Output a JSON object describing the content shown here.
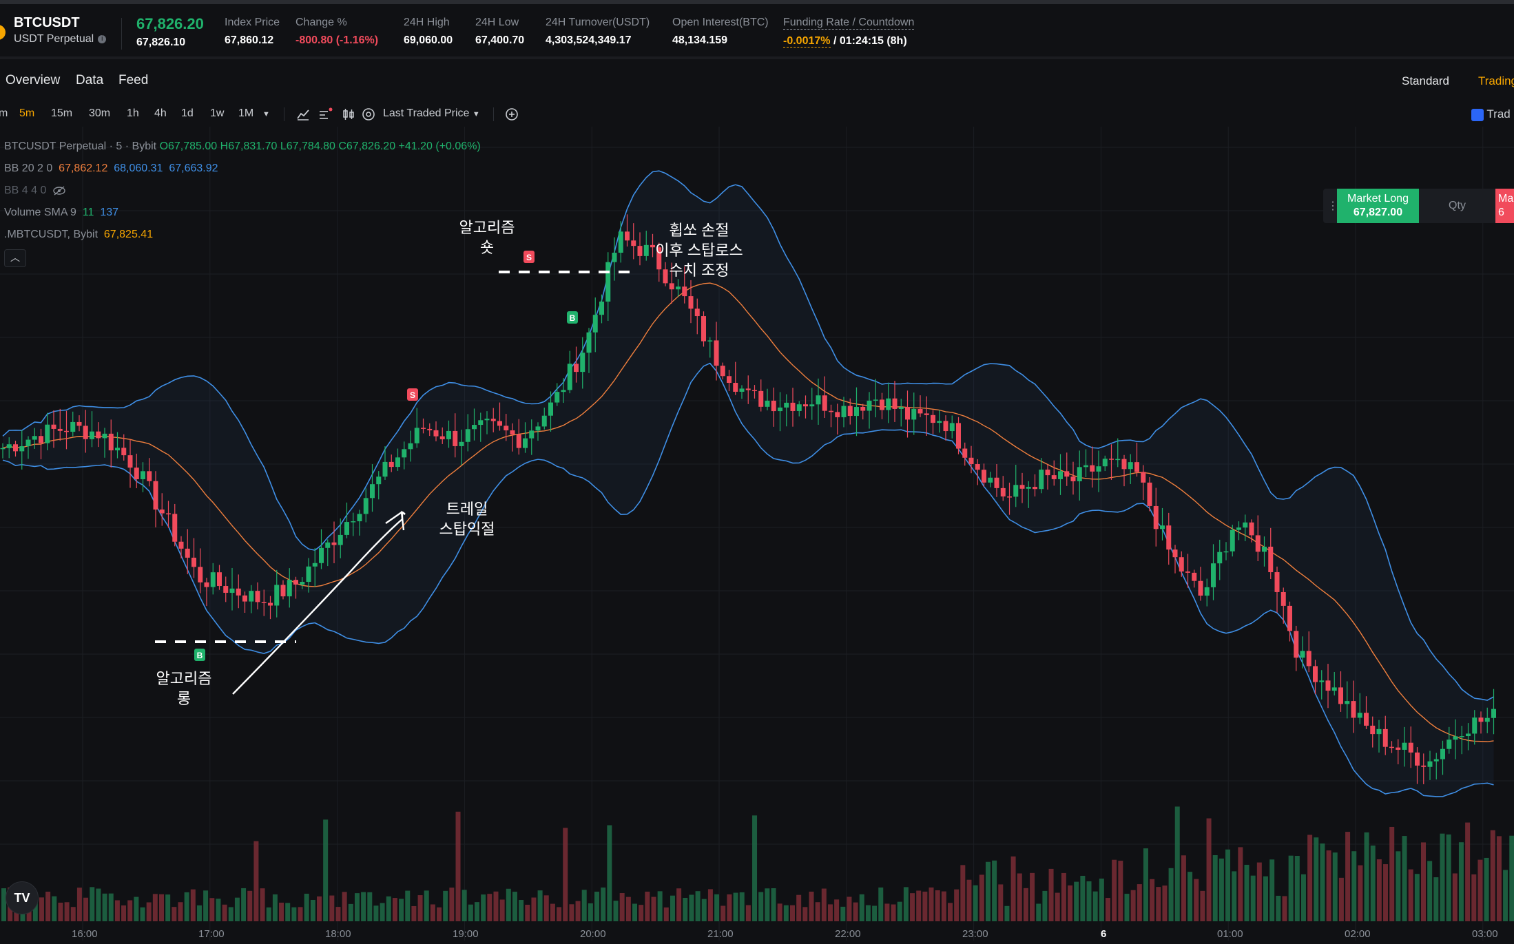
{
  "ticker": {
    "symbol": "BTCUSDT",
    "subtitle": "USDT Perpetual",
    "last_price": "67,826.20",
    "mark_price": "67,826.10",
    "stats": [
      {
        "label": "Index Price",
        "value": "67,860.12"
      },
      {
        "label": "Change %",
        "value": "-800.80 (-1.16%)"
      },
      {
        "label": "24H High",
        "value": "69,060.00"
      },
      {
        "label": "24H Low",
        "value": "67,400.70"
      },
      {
        "label": "24H Turnover(USDT)",
        "value": "4,303,524,349.17"
      },
      {
        "label": "Open Interest(BTC)",
        "value": "48,134.159"
      }
    ],
    "funding": {
      "label": "Funding Rate / Countdown",
      "rate": "-0.0017%",
      "countdown": " / 01:24:15 (8h)"
    }
  },
  "tabs": {
    "overview": "Overview",
    "data": "Data",
    "feed": "Feed",
    "standard": "Standard",
    "tradingview": "TradingView"
  },
  "toolbar": {
    "timeframes": [
      "m",
      "5m",
      "15m",
      "30m",
      "1h",
      "4h",
      "1d",
      "1w",
      "1M"
    ],
    "active_timeframe": "5m",
    "price_source": "Last Traded Price",
    "trade_label": "Trad"
  },
  "legend": {
    "main": {
      "title": "BTCUSDT Perpetual · 5 · Bybit",
      "o": "O67,785.00",
      "h": "H67,831.70",
      "l": "L67,784.80",
      "c": "C67,826.20",
      "chg": "+41.20 (+0.06%)"
    },
    "bb1": {
      "name": "BB 20 2 0",
      "basis": "67,862.12",
      "upper": "68,060.31",
      "lower": "67,663.92"
    },
    "bb2": {
      "name": "BB 4 4 0"
    },
    "vol": {
      "name": "Volume SMA 9",
      "v1": "11",
      "v2": "137"
    },
    "index": {
      "name": ".MBTCUSDT, Bybit",
      "value": "67,825.41"
    }
  },
  "order": {
    "long_label": "Market Long",
    "long_price": "67,827.00",
    "qty": "Qty",
    "short_label": "Ma",
    "short_price": "6"
  },
  "annotations": {
    "algo_short": [
      "알고리즘",
      "숏"
    ],
    "whipsaw": [
      "휩쏘 손절",
      "이후 스탑로스",
      "수치 조정"
    ],
    "trailing": [
      "트레일",
      "스탑익절"
    ],
    "algo_long": [
      "알고리즘",
      "롱"
    ],
    "sig_s": "S",
    "sig_b": "B"
  },
  "x_axis": [
    "16:00",
    "17:00",
    "18:00",
    "19:00",
    "20:00",
    "21:00",
    "22:00",
    "23:00",
    "6",
    "01:00",
    "02:00",
    "03:00"
  ],
  "colors": {
    "up": "#20b26c",
    "down": "#f14b5c",
    "accent": "#f7a600",
    "bb_band": "#3f8fe6",
    "bb_basis": "#f07f3d"
  },
  "chart_data": {
    "type": "candlestick",
    "interval": "5m",
    "x_range": [
      "15:35",
      "03:10"
    ],
    "ylim": [
      66500,
      68800
    ],
    "close_path_approx": [
      67750,
      67790,
      67820,
      67800,
      67700,
      67520,
      67320,
      67280,
      67240,
      67290,
      67420,
      67560,
      67700,
      67820,
      67780,
      67820,
      67780,
      67900,
      68100,
      68450,
      68400,
      68250,
      68050,
      67920,
      67900,
      67910,
      67880,
      67920,
      67850,
      67850,
      67700,
      67580,
      67650,
      67640,
      67700,
      67660,
      67400,
      67250,
      67500,
      67400,
      67050,
      66950,
      66820,
      66750,
      66700,
      66820,
      66850
    ],
    "volume_bars": 240
  }
}
